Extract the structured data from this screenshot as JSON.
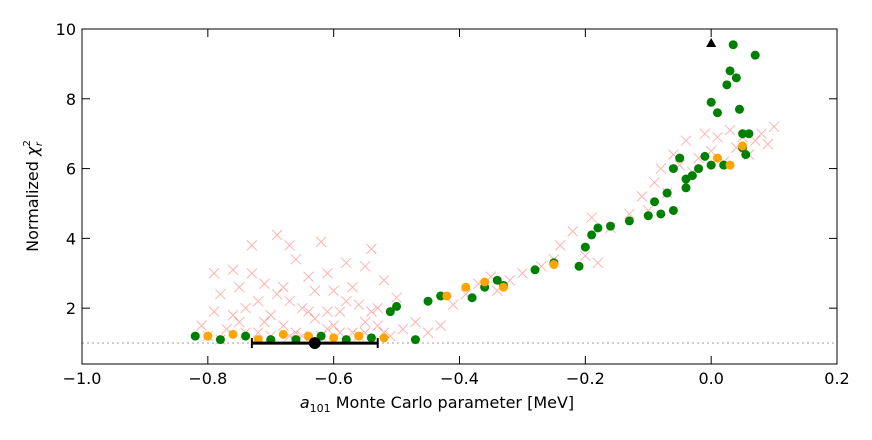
{
  "chart_data": {
    "type": "scatter",
    "x_label": {
      "symbol": "a",
      "sub": "101",
      "text": " Monte Carlo parameter [MeV]"
    },
    "y_label": {
      "text": "Normalized ",
      "symbol": "χ",
      "sup": "2",
      "sub": "r"
    },
    "xlim": [
      -1.0,
      0.2
    ],
    "ylim": [
      0.4,
      10
    ],
    "xticks": [
      {
        "value": -1.0,
        "label": "−1.0"
      },
      {
        "value": -0.8,
        "label": "−0.8"
      },
      {
        "value": -0.6,
        "label": "−0.6"
      },
      {
        "value": -0.4,
        "label": "−0.4"
      },
      {
        "value": -0.2,
        "label": "−0.2"
      },
      {
        "value": 0.0,
        "label": "0.0"
      },
      0.2
    ],
    "yticks": [
      2,
      4,
      6,
      8,
      10
    ],
    "hline": 1,
    "series": [
      {
        "color": "#ff0000",
        "marker": "x",
        "x": [
          -0.8,
          -0.79,
          -0.78,
          -0.77,
          -0.76,
          -0.75,
          -0.74,
          -0.73,
          -0.72,
          -0.71,
          -0.7,
          -0.69,
          -0.68,
          -0.67,
          -0.66,
          -0.65,
          -0.64,
          -0.63,
          -0.62,
          -0.61,
          -0.6,
          -0.59,
          -0.58,
          -0.57,
          -0.56,
          -0.55,
          -0.54,
          -0.53,
          -0.52,
          -0.51,
          -0.5,
          -0.49,
          -0.47,
          -0.45,
          -0.43,
          -0.81,
          -0.78,
          -0.75,
          -0.72,
          -0.7,
          -0.68,
          -0.66,
          -0.64,
          -0.62,
          -0.6,
          -0.58,
          -0.56,
          -0.54,
          -0.52,
          -0.76,
          -0.74,
          -0.71,
          -0.69,
          -0.67,
          -0.65,
          -0.63,
          -0.61,
          -0.59,
          -0.57,
          -0.55,
          -0.53,
          -0.79,
          -0.73,
          -0.67,
          -0.61,
          -0.55,
          -0.41,
          -0.39,
          -0.37,
          -0.35,
          -0.34,
          -0.32,
          -0.3,
          -0.27,
          -0.25,
          -0.24,
          -0.22,
          -0.2,
          -0.19,
          -0.18,
          -0.16,
          -0.13,
          -0.11,
          -0.1,
          -0.09,
          -0.08,
          -0.07,
          -0.06,
          -0.05,
          -0.04,
          -0.03,
          -0.02,
          -0.01,
          0.0,
          0.01,
          0.02,
          0.03,
          0.04,
          0.05,
          0.06,
          0.07,
          0.08,
          0.09,
          0.1
        ],
        "values": [
          1.2,
          1.9,
          2.4,
          1.4,
          3.1,
          1.6,
          2.0,
          3.8,
          1.3,
          2.7,
          1.8,
          4.1,
          1.5,
          2.2,
          3.4,
          1.2,
          2.9,
          1.7,
          3.9,
          1.4,
          2.5,
          1.9,
          3.3,
          1.3,
          2.1,
          1.6,
          3.7,
          1.5,
          2.8,
          1.2,
          2.3,
          1.4,
          1.6,
          1.3,
          1.5,
          1.5,
          1.1,
          2.6,
          2.2,
          1.2,
          2.6,
          1.3,
          1.9,
          1.2,
          1.5,
          2.2,
          1.2,
          1.9,
          1.3,
          1.8,
          1.3,
          1.6,
          2.4,
          1.2,
          2.0,
          2.5,
          1.9,
          1.3,
          2.6,
          1.3,
          2.0,
          3.0,
          3.0,
          3.8,
          3.0,
          3.2,
          2.1,
          2.4,
          2.7,
          2.9,
          2.5,
          2.8,
          3.0,
          3.2,
          3.4,
          3.8,
          4.2,
          3.5,
          4.6,
          3.3,
          4.3,
          4.7,
          5.2,
          4.8,
          5.6,
          6.0,
          5.3,
          6.4,
          6.1,
          6.8,
          5.9,
          6.3,
          7.0,
          6.5,
          6.9,
          6.2,
          7.1,
          6.6,
          6.9,
          6.4,
          6.8,
          7.0,
          6.7,
          7.2
        ]
      },
      {
        "color": "#008000",
        "marker": "o",
        "x": [
          -0.82,
          -0.78,
          -0.74,
          -0.7,
          -0.66,
          -0.62,
          -0.58,
          -0.54,
          -0.5,
          -0.51,
          -0.47,
          -0.45,
          -0.43,
          -0.38,
          -0.36,
          -0.34,
          -0.33,
          -0.28,
          -0.25,
          -0.21,
          -0.2,
          -0.19,
          -0.18,
          -0.16,
          -0.13,
          -0.1,
          -0.09,
          -0.08,
          -0.07,
          -0.06,
          -0.05,
          -0.04,
          -0.03,
          -0.02,
          -0.01,
          0.0,
          0.01,
          0.02,
          0.025,
          0.03,
          0.035,
          0.04,
          0.045,
          0.05,
          0.05,
          0.055,
          0.06,
          0.07,
          0.0,
          -0.06,
          -0.04
        ],
        "values": [
          1.2,
          1.1,
          1.2,
          1.1,
          1.1,
          1.2,
          1.1,
          1.15,
          2.05,
          1.9,
          1.1,
          2.2,
          2.35,
          2.3,
          2.6,
          2.8,
          2.65,
          3.1,
          3.3,
          3.2,
          3.75,
          4.1,
          4.3,
          4.35,
          4.5,
          4.65,
          5.05,
          4.7,
          5.3,
          4.8,
          6.3,
          5.7,
          5.8,
          6.0,
          6.35,
          7.9,
          7.6,
          6.1,
          8.4,
          8.8,
          9.55,
          8.6,
          7.7,
          7.0,
          6.6,
          6.4,
          7.0,
          9.25,
          6.1,
          6.0,
          5.45
        ]
      },
      {
        "color": "#ffa500",
        "marker": "o",
        "x": [
          -0.8,
          -0.76,
          -0.72,
          -0.68,
          -0.64,
          -0.6,
          -0.56,
          -0.52,
          -0.42,
          -0.39,
          -0.36,
          -0.33,
          -0.25,
          0.01,
          0.03,
          0.05
        ],
        "values": [
          1.2,
          1.25,
          1.1,
          1.25,
          1.2,
          1.15,
          1.2,
          1.15,
          2.35,
          2.6,
          2.75,
          2.6,
          3.25,
          6.3,
          6.1,
          6.65
        ]
      },
      {
        "color": "#000000",
        "marker": "^",
        "x": [
          0.0
        ],
        "values": [
          9.6
        ]
      },
      {
        "color": "#000000",
        "marker": "errorbar",
        "x": [
          -0.63
        ],
        "values": [
          1.0
        ],
        "xerr": [
          0.1
        ]
      }
    ]
  }
}
